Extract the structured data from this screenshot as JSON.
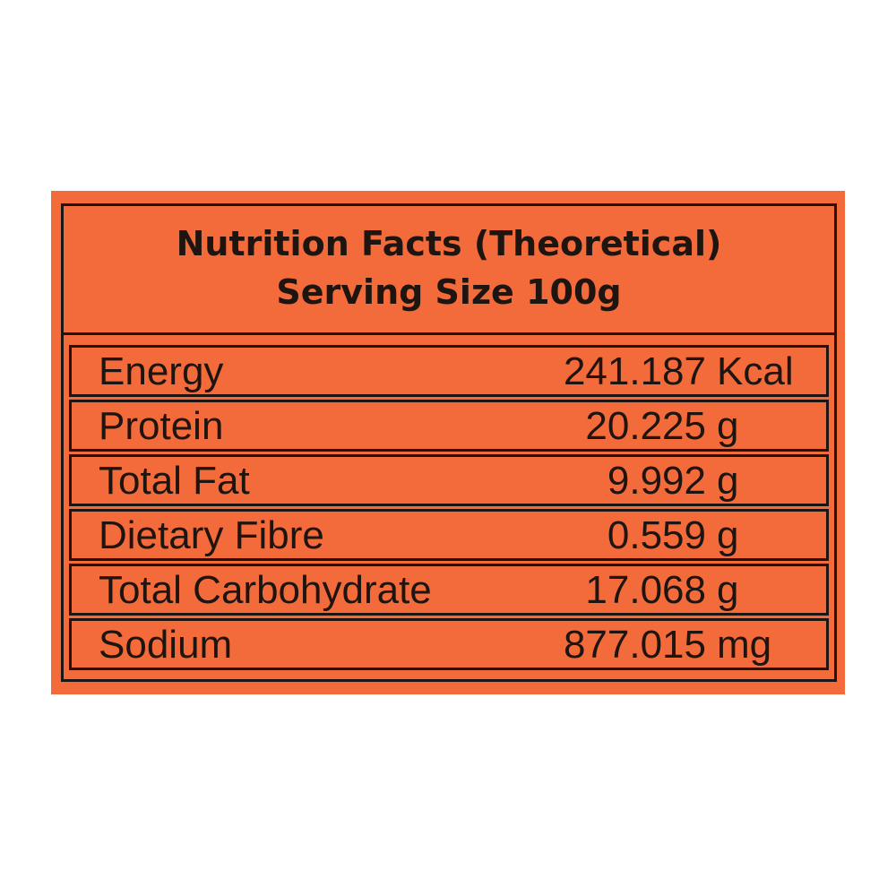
{
  "label": {
    "title": "Nutrition Facts (Theoretical)",
    "subtitle": "Serving Size 100g",
    "colors": {
      "background": "#f36b3a",
      "ink": "#1e1410"
    }
  },
  "nutrients": [
    {
      "name": "Energy",
      "amount": "241.187",
      "unit": "Kcal"
    },
    {
      "name": "Protein",
      "amount": "20.225",
      "unit": "g"
    },
    {
      "name": "Total Fat",
      "amount": "9.992",
      "unit": "g"
    },
    {
      "name": "Dietary Fibre",
      "amount": "0.559",
      "unit": "g"
    },
    {
      "name": "Total Carbohydrate",
      "amount": "17.068",
      "unit": "g"
    },
    {
      "name": "Sodium",
      "amount": "877.015",
      "unit": "mg"
    }
  ]
}
